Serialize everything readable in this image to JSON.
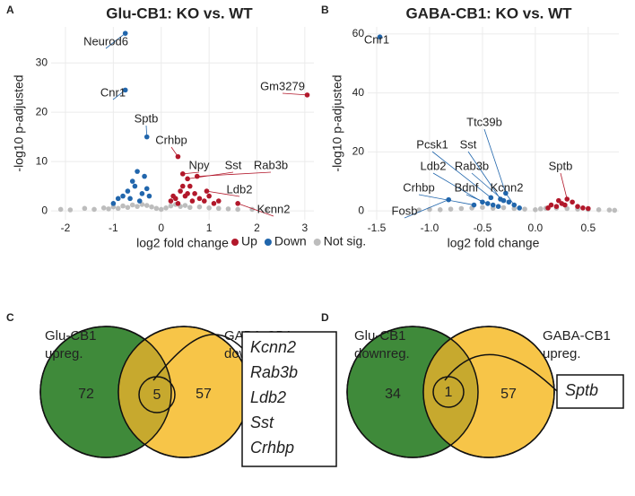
{
  "chart_data": [
    {
      "type": "scatter",
      "panel": "A",
      "title": "Glu-CB1: KO vs. WT",
      "x_label": "log2 fold change",
      "y_label": "-log10 p-adjusted",
      "xlim": [
        -2.3,
        3.19
      ],
      "ylim": [
        -1.8,
        37.3
      ],
      "xticks": [
        -2,
        -1,
        0,
        1,
        2,
        3
      ],
      "yticks": [
        0,
        10,
        20,
        30
      ],
      "grid": true,
      "legend": "bottom",
      "series": [
        {
          "name": "Up",
          "color": "#b2182b",
          "x": [
            3.05,
            0.35,
            0.45,
            0.55,
            0.75,
            0.95,
            1.6,
            0.2,
            0.25,
            0.3,
            0.4,
            0.5,
            0.6,
            0.65,
            0.7,
            0.8,
            0.9,
            1.0,
            1.1,
            1.2,
            0.35,
            0.45,
            0.55
          ],
          "values": [
            23.5,
            11,
            7.5,
            6.5,
            7,
            4,
            1.5,
            2,
            3,
            2.5,
            4,
            3,
            5,
            2,
            3.5,
            2.5,
            2,
            3,
            1.5,
            2,
            1.5,
            5,
            3.5
          ],
          "labels": [
            "Gm3279",
            "Crhbp",
            "Npy",
            "Sst",
            "Rab3b",
            "Ldb2",
            "Kcnn2",
            null,
            null,
            null,
            null,
            null,
            null,
            null,
            null,
            null,
            null,
            null,
            null,
            null,
            null,
            null,
            null
          ]
        },
        {
          "name": "Down",
          "color": "#2166ac",
          "x": [
            -0.75,
            -0.75,
            -0.3,
            -0.8,
            -0.6,
            -0.5,
            -0.4,
            -0.35,
            -0.9,
            -0.7,
            -0.45,
            -0.25,
            -0.55,
            -0.65,
            -0.3,
            -1.0
          ],
          "values": [
            36,
            24.5,
            15,
            3,
            6,
            8,
            3.5,
            7,
            2.5,
            4,
            2,
            3,
            5,
            2.5,
            4.5,
            1.5
          ],
          "labels": [
            "Neurod6",
            "Cnr1",
            "Sptb",
            null,
            null,
            null,
            null,
            null,
            null,
            null,
            null,
            null,
            null,
            null,
            null,
            null
          ]
        },
        {
          "name": "Not sig.",
          "color": "#bdbdbd",
          "x": [
            -2.1,
            -1.9,
            -1.6,
            -1.4,
            -1.2,
            -1.1,
            -1.0,
            -0.9,
            -0.8,
            -0.7,
            -0.6,
            -0.5,
            -0.4,
            -0.3,
            -0.2,
            -0.1,
            0,
            0.1,
            0.2,
            0.3,
            0.4,
            0.5,
            0.6,
            0.8,
            1.0,
            1.2,
            1.4,
            1.6,
            1.9,
            2.2
          ],
          "values": [
            0.3,
            0.2,
            0.5,
            0.3,
            0.6,
            0.4,
            0.8,
            0.5,
            1,
            0.7,
            1.2,
            0.9,
            1.3,
            1.1,
            0.8,
            0.5,
            0.3,
            0.6,
            1,
            1.3,
            0.9,
            1.1,
            0.7,
            0.8,
            0.6,
            0.5,
            0.4,
            0.3,
            0.3,
            0.2
          ]
        }
      ]
    },
    {
      "type": "scatter",
      "panel": "B",
      "title": "GABA-CB1: KO vs. WT",
      "x_label": "log2 fold change",
      "y_label": "-log10 p-adjusted",
      "xlim": [
        -1.585,
        0.79
      ],
      "ylim": [
        -3.0,
        62.4
      ],
      "xticks": [
        -1.5,
        {
          "value": -1,
          "label": "-1.0"
        },
        -0.5,
        {
          "value": 0,
          "label": "0.0"
        },
        0.5
      ],
      "yticks": [
        0,
        20,
        40,
        60
      ],
      "grid": true,
      "series": [
        {
          "color": "#b2182b",
          "x": [
            0.3,
            0.12,
            0.15,
            0.2,
            0.25,
            0.35,
            0.4,
            0.45,
            0.5,
            0.28,
            0.22
          ],
          "values": [
            4,
            1,
            2,
            1.5,
            2.5,
            3,
            1.5,
            1,
            0.8,
            2,
            3.5
          ],
          "labels": [
            "Sptb",
            null,
            null,
            null,
            null,
            null,
            null,
            null,
            null,
            null,
            null
          ]
        },
        {
          "color": "#2166ac",
          "x": [
            -1.47,
            -0.28,
            -0.42,
            -0.33,
            -0.5,
            -0.3,
            -0.58,
            -0.45,
            -0.2,
            -0.82,
            -0.4,
            -0.35,
            -0.25,
            -0.15
          ],
          "values": [
            59,
            6,
            4.5,
            4,
            3,
            3.5,
            2,
            2.5,
            2,
            3.8,
            2,
            1.5,
            3,
            1
          ],
          "labels": [
            "Cnr1",
            "Ttc39b",
            "Pcsk1",
            "Sst",
            "Ldb2",
            "Rab3b",
            "Crhbp",
            "Bdnf",
            "Kcnn2",
            "Fosb",
            null,
            null,
            null,
            null
          ]
        },
        {
          "color": "#bdbdbd",
          "x": [
            -1.1,
            -1.0,
            -0.9,
            -0.8,
            -0.7,
            -0.6,
            -0.5,
            -0.4,
            -0.3,
            -0.2,
            -0.1,
            0,
            0.05,
            0.1,
            0.2,
            0.3,
            0.4,
            0.5,
            0.6,
            0.7,
            0.75
          ],
          "values": [
            0.3,
            0.5,
            0.4,
            0.6,
            0.8,
            1,
            1.2,
            0.9,
            1.1,
            0.8,
            0.6,
            0.4,
            0.7,
            0.9,
            1,
            0.8,
            0.6,
            0.5,
            0.4,
            0.3,
            0.2
          ]
        }
      ]
    },
    {
      "type": "venn",
      "panel": "C",
      "sets": [
        {
          "name": [
            "Glu-CB1",
            "upreg."
          ],
          "color": "#3f8a3a",
          "only": 72
        },
        {
          "name": [
            "GABA-CB1",
            "downreg."
          ],
          "color": "#f7c548",
          "only": 57
        }
      ],
      "overlap": 5,
      "overlap_color": "#c7a92e",
      "genes": [
        "Kcnn2",
        "Rab3b",
        "Ldb2",
        "Sst",
        "Crhbp"
      ]
    },
    {
      "type": "venn",
      "panel": "D",
      "sets": [
        {
          "name": [
            "Glu-CB1",
            "downreg."
          ],
          "color": "#3f8a3a",
          "only": 34
        },
        {
          "name": [
            "GABA-CB1",
            "upreg."
          ],
          "color": "#f7c548",
          "only": 57
        }
      ],
      "overlap": 1,
      "overlap_color": "#c7a92e",
      "genes": [
        "Sptb"
      ]
    }
  ]
}
